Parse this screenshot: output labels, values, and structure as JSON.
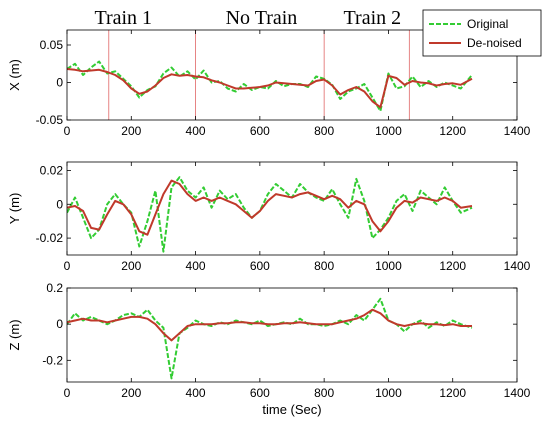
{
  "chart_data": [
    {
      "type": "line",
      "ylabel": "X (m)",
      "xlabel": "",
      "xlim": [
        0,
        1400
      ],
      "ylim": [
        -0.05,
        0.07
      ],
      "xticks": [
        0,
        200,
        400,
        600,
        800,
        1000,
        1200,
        1400
      ],
      "yticks": [
        0.05,
        0,
        -0.05
      ],
      "ytick_labels": [
        "0.05",
        "0",
        "-0.05"
      ],
      "vlines": [
        130,
        400,
        800,
        1065
      ],
      "annotations": [
        {
          "text": "Train 1",
          "x": 175
        },
        {
          "text": "No Train",
          "x": 605
        },
        {
          "text": "Train 2",
          "x": 950
        }
      ],
      "legend": {
        "placement": "top-right",
        "entries": [
          "Original",
          "De-noised"
        ]
      },
      "series": [
        {
          "name": "Original",
          "style": "dashed",
          "color": "#33cc33",
          "x": [
            0,
            25,
            50,
            75,
            100,
            125,
            150,
            175,
            200,
            225,
            250,
            275,
            300,
            325,
            350,
            375,
            400,
            425,
            450,
            475,
            500,
            525,
            550,
            575,
            600,
            625,
            650,
            675,
            700,
            725,
            750,
            775,
            800,
            825,
            850,
            875,
            900,
            925,
            950,
            975,
            1000,
            1025,
            1050,
            1075,
            1100,
            1125,
            1150,
            1175,
            1200,
            1225,
            1260
          ],
          "y": [
            0.018,
            0.025,
            0.01,
            0.02,
            0.028,
            0.012,
            0.015,
            0.005,
            -0.005,
            -0.02,
            -0.01,
            -0.005,
            0.012,
            0.02,
            0.008,
            0.015,
            0.004,
            0.016,
            0.0,
            0.002,
            -0.008,
            -0.012,
            -0.002,
            -0.01,
            -0.006,
            -0.008,
            0.002,
            -0.005,
            -0.002,
            -0.002,
            -0.006,
            0.008,
            0.005,
            -0.003,
            -0.022,
            -0.012,
            -0.008,
            -0.002,
            -0.02,
            -0.038,
            0.012,
            -0.008,
            -0.005,
            0.008,
            -0.006,
            0.002,
            -0.006,
            0.0,
            -0.004,
            -0.008,
            0.01
          ]
        },
        {
          "name": "De-noised",
          "style": "solid",
          "color": "#c0392b",
          "x": [
            0,
            25,
            50,
            75,
            100,
            125,
            150,
            175,
            200,
            225,
            250,
            275,
            300,
            325,
            350,
            375,
            400,
            425,
            450,
            475,
            500,
            525,
            550,
            575,
            600,
            625,
            650,
            675,
            700,
            725,
            750,
            775,
            800,
            825,
            850,
            875,
            900,
            925,
            950,
            975,
            1000,
            1025,
            1050,
            1075,
            1100,
            1125,
            1150,
            1175,
            1200,
            1225,
            1260
          ],
          "y": [
            0.018,
            0.017,
            0.015,
            0.016,
            0.017,
            0.014,
            0.01,
            0.003,
            -0.008,
            -0.015,
            -0.012,
            -0.004,
            0.006,
            0.011,
            0.009,
            0.01,
            0.008,
            0.007,
            0.003,
            0.0,
            -0.004,
            -0.008,
            -0.008,
            -0.007,
            -0.006,
            -0.004,
            0.0,
            -0.001,
            -0.002,
            -0.003,
            -0.004,
            0.002,
            0.004,
            -0.004,
            -0.016,
            -0.01,
            -0.006,
            -0.012,
            -0.025,
            -0.033,
            0.009,
            0.006,
            -0.003,
            0.002,
            0.0,
            -0.001,
            -0.004,
            -0.002,
            -0.001,
            -0.003,
            0.005
          ]
        }
      ]
    },
    {
      "type": "line",
      "ylabel": "Y (m)",
      "xlabel": "",
      "xlim": [
        0,
        1400
      ],
      "ylim": [
        -0.03,
        0.025
      ],
      "xticks": [
        0,
        200,
        400,
        600,
        800,
        1000,
        1200,
        1400
      ],
      "yticks": [
        0.02,
        0,
        -0.02
      ],
      "ytick_labels": [
        "0.02",
        "0",
        "-0.02"
      ],
      "series": [
        {
          "name": "Original",
          "style": "dashed",
          "color": "#33cc33",
          "x": [
            0,
            25,
            50,
            75,
            100,
            125,
            150,
            175,
            200,
            225,
            250,
            275,
            300,
            325,
            350,
            375,
            400,
            425,
            450,
            475,
            500,
            525,
            550,
            575,
            600,
            625,
            650,
            675,
            700,
            725,
            750,
            775,
            800,
            825,
            850,
            875,
            900,
            925,
            950,
            975,
            1000,
            1025,
            1050,
            1075,
            1100,
            1125,
            1150,
            1175,
            1200,
            1225,
            1260
          ],
          "y": [
            -0.005,
            0.004,
            -0.008,
            -0.02,
            -0.015,
            0.0,
            0.006,
            0.0,
            -0.005,
            -0.025,
            -0.01,
            0.008,
            -0.028,
            0.01,
            0.016,
            0.008,
            0.004,
            0.01,
            -0.002,
            0.008,
            0.003,
            0.006,
            -0.002,
            -0.008,
            -0.004,
            0.006,
            0.012,
            0.008,
            0.004,
            0.012,
            0.007,
            0.004,
            0.002,
            0.009,
            0.0,
            -0.008,
            0.015,
            0.002,
            -0.02,
            -0.015,
            -0.008,
            0.002,
            0.006,
            -0.004,
            0.008,
            0.004,
            0.0,
            0.01,
            0.002,
            -0.005,
            -0.002
          ]
        },
        {
          "name": "De-noised",
          "style": "solid",
          "color": "#c0392b",
          "x": [
            0,
            25,
            50,
            75,
            100,
            125,
            150,
            175,
            200,
            225,
            250,
            275,
            300,
            325,
            350,
            375,
            400,
            425,
            450,
            475,
            500,
            525,
            550,
            575,
            600,
            625,
            650,
            675,
            700,
            725,
            750,
            775,
            800,
            825,
            850,
            875,
            900,
            925,
            950,
            975,
            1000,
            1025,
            1050,
            1075,
            1100,
            1125,
            1150,
            1175,
            1200,
            1225,
            1260
          ],
          "y": [
            -0.002,
            -0.001,
            -0.004,
            -0.014,
            -0.015,
            -0.006,
            0.002,
            0.0,
            -0.006,
            -0.016,
            -0.018,
            -0.006,
            0.006,
            0.014,
            0.012,
            0.006,
            0.002,
            0.004,
            0.002,
            0.004,
            0.002,
            0.0,
            -0.004,
            -0.008,
            -0.004,
            0.002,
            0.006,
            0.005,
            0.004,
            0.006,
            0.007,
            0.005,
            0.003,
            0.005,
            0.003,
            -0.002,
            0.002,
            0.0,
            -0.01,
            -0.016,
            -0.01,
            -0.002,
            0.002,
            0.001,
            0.004,
            0.003,
            0.002,
            0.004,
            0.002,
            -0.002,
            -0.001
          ]
        }
      ]
    },
    {
      "type": "line",
      "ylabel": "Z (m)",
      "xlabel": "time (Sec)",
      "xlim": [
        0,
        1400
      ],
      "ylim": [
        -0.32,
        0.2
      ],
      "xticks": [
        0,
        200,
        400,
        600,
        800,
        1000,
        1200,
        1400
      ],
      "yticks": [
        0.2,
        0,
        -0.2
      ],
      "ytick_labels": [
        "0.2",
        "0",
        "-0.2"
      ],
      "series": [
        {
          "name": "Original",
          "style": "dashed",
          "color": "#33cc33",
          "x": [
            0,
            25,
            50,
            75,
            100,
            125,
            150,
            175,
            200,
            225,
            250,
            275,
            300,
            325,
            350,
            375,
            400,
            425,
            450,
            475,
            500,
            525,
            550,
            575,
            600,
            625,
            650,
            675,
            700,
            725,
            750,
            775,
            800,
            825,
            850,
            875,
            900,
            925,
            950,
            975,
            1000,
            1025,
            1050,
            1075,
            1100,
            1125,
            1150,
            1175,
            1200,
            1225,
            1260
          ],
          "y": [
            0.0,
            0.06,
            0.02,
            0.04,
            0.02,
            0.0,
            0.02,
            0.05,
            0.06,
            0.04,
            0.08,
            0.02,
            -0.02,
            -0.3,
            -0.05,
            -0.02,
            0.02,
            0.0,
            -0.01,
            0.01,
            0.0,
            0.02,
            0.01,
            0.0,
            0.02,
            -0.01,
            0.0,
            0.01,
            0.0,
            0.03,
            0.0,
            0.0,
            -0.01,
            0.0,
            0.02,
            0.0,
            0.05,
            0.02,
            0.08,
            0.14,
            0.02,
            0.0,
            -0.04,
            0.0,
            0.02,
            -0.02,
            0.01,
            -0.01,
            0.02,
            0.0,
            -0.02
          ]
        },
        {
          "name": "De-noised",
          "style": "solid",
          "color": "#c0392b",
          "x": [
            0,
            25,
            50,
            75,
            100,
            125,
            150,
            175,
            200,
            225,
            250,
            275,
            300,
            325,
            350,
            375,
            400,
            425,
            450,
            475,
            500,
            525,
            550,
            575,
            600,
            625,
            650,
            675,
            700,
            725,
            750,
            775,
            800,
            825,
            850,
            875,
            900,
            925,
            950,
            975,
            1000,
            1025,
            1050,
            1075,
            1100,
            1125,
            1150,
            1175,
            1200,
            1225,
            1260
          ],
          "y": [
            0.01,
            0.02,
            0.03,
            0.02,
            0.02,
            0.01,
            0.02,
            0.03,
            0.04,
            0.04,
            0.03,
            0.0,
            -0.05,
            -0.09,
            -0.05,
            -0.01,
            0.0,
            0.0,
            0.0,
            0.005,
            0.005,
            0.01,
            0.01,
            0.005,
            0.005,
            0.0,
            0.0,
            0.005,
            0.005,
            0.01,
            0.005,
            0.0,
            0.0,
            0.0,
            0.01,
            0.02,
            0.03,
            0.05,
            0.08,
            0.06,
            0.02,
            0.0,
            -0.01,
            0.0,
            0.005,
            0.0,
            0.0,
            -0.005,
            0.0,
            -0.01,
            -0.01
          ]
        }
      ]
    }
  ]
}
